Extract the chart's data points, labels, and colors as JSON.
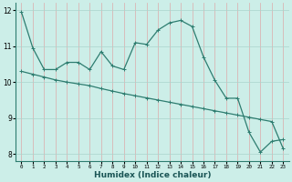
{
  "title": "",
  "xlabel": "Humidex (Indice chaleur)",
  "ylabel": "",
  "background_color": "#cceee8",
  "line_color": "#2e7d70",
  "grid_color": "#aad4cc",
  "xlim": [
    -0.5,
    23.5
  ],
  "ylim": [
    7.8,
    12.2
  ],
  "yticks": [
    8,
    9,
    10,
    11,
    12
  ],
  "xticks": [
    0,
    1,
    2,
    3,
    4,
    5,
    6,
    7,
    8,
    9,
    10,
    11,
    12,
    13,
    14,
    15,
    16,
    17,
    18,
    19,
    20,
    21,
    22,
    23
  ],
  "curve1_x": [
    0,
    1,
    2,
    3,
    4,
    5,
    6,
    7,
    8,
    9,
    10,
    11,
    12,
    13,
    14,
    15,
    16,
    17,
    18,
    19,
    20,
    21,
    22,
    23
  ],
  "curve1_y": [
    11.95,
    10.95,
    10.35,
    10.35,
    10.55,
    10.55,
    10.35,
    10.85,
    10.45,
    10.35,
    11.1,
    11.05,
    11.45,
    11.65,
    11.72,
    11.55,
    10.7,
    10.05,
    9.55,
    9.55,
    8.6,
    8.05,
    8.35,
    8.4
  ],
  "curve2_x": [
    0,
    1,
    2,
    3,
    4,
    5,
    6,
    7,
    8,
    9,
    10,
    11,
    12,
    13,
    14,
    15,
    16,
    17,
    18,
    19,
    20,
    21,
    22,
    23
  ],
  "curve2_y": [
    10.3,
    10.22,
    10.14,
    10.06,
    10.0,
    9.95,
    9.9,
    9.82,
    9.75,
    9.68,
    9.62,
    9.56,
    9.5,
    9.44,
    9.38,
    9.32,
    9.26,
    9.2,
    9.14,
    9.08,
    9.02,
    8.96,
    8.9,
    8.15
  ]
}
